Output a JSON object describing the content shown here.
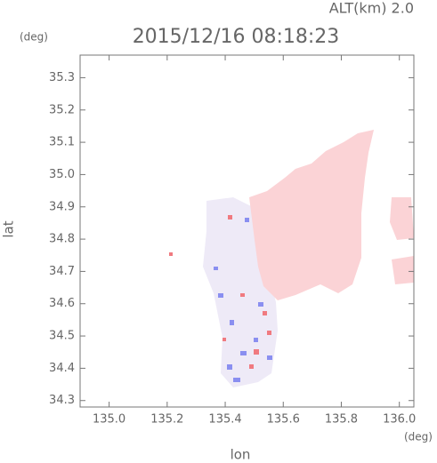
{
  "chart_data": {
    "type": "map",
    "title": "2015/12/16 08:18:23",
    "subtitle": "ALT(km) 2.0",
    "x_label": "lon",
    "x_unit": "(deg)",
    "y_label": "lat",
    "y_unit": "(deg)",
    "xlim": [
      134.9,
      136.05
    ],
    "xticks": [
      {
        "value": 135.0,
        "label": "135.0"
      },
      135.2,
      135.4,
      135.6,
      135.8,
      {
        "value": 136.0,
        "label": "136.0"
      }
    ],
    "ylim": [
      34.28,
      35.37
    ],
    "yticks": [
      34.3,
      34.4,
      34.5,
      34.6,
      34.7,
      34.8,
      34.9,
      {
        "value": 35.0,
        "label": "35.0"
      },
      35.1,
      35.2,
      35.3
    ]
  }
}
